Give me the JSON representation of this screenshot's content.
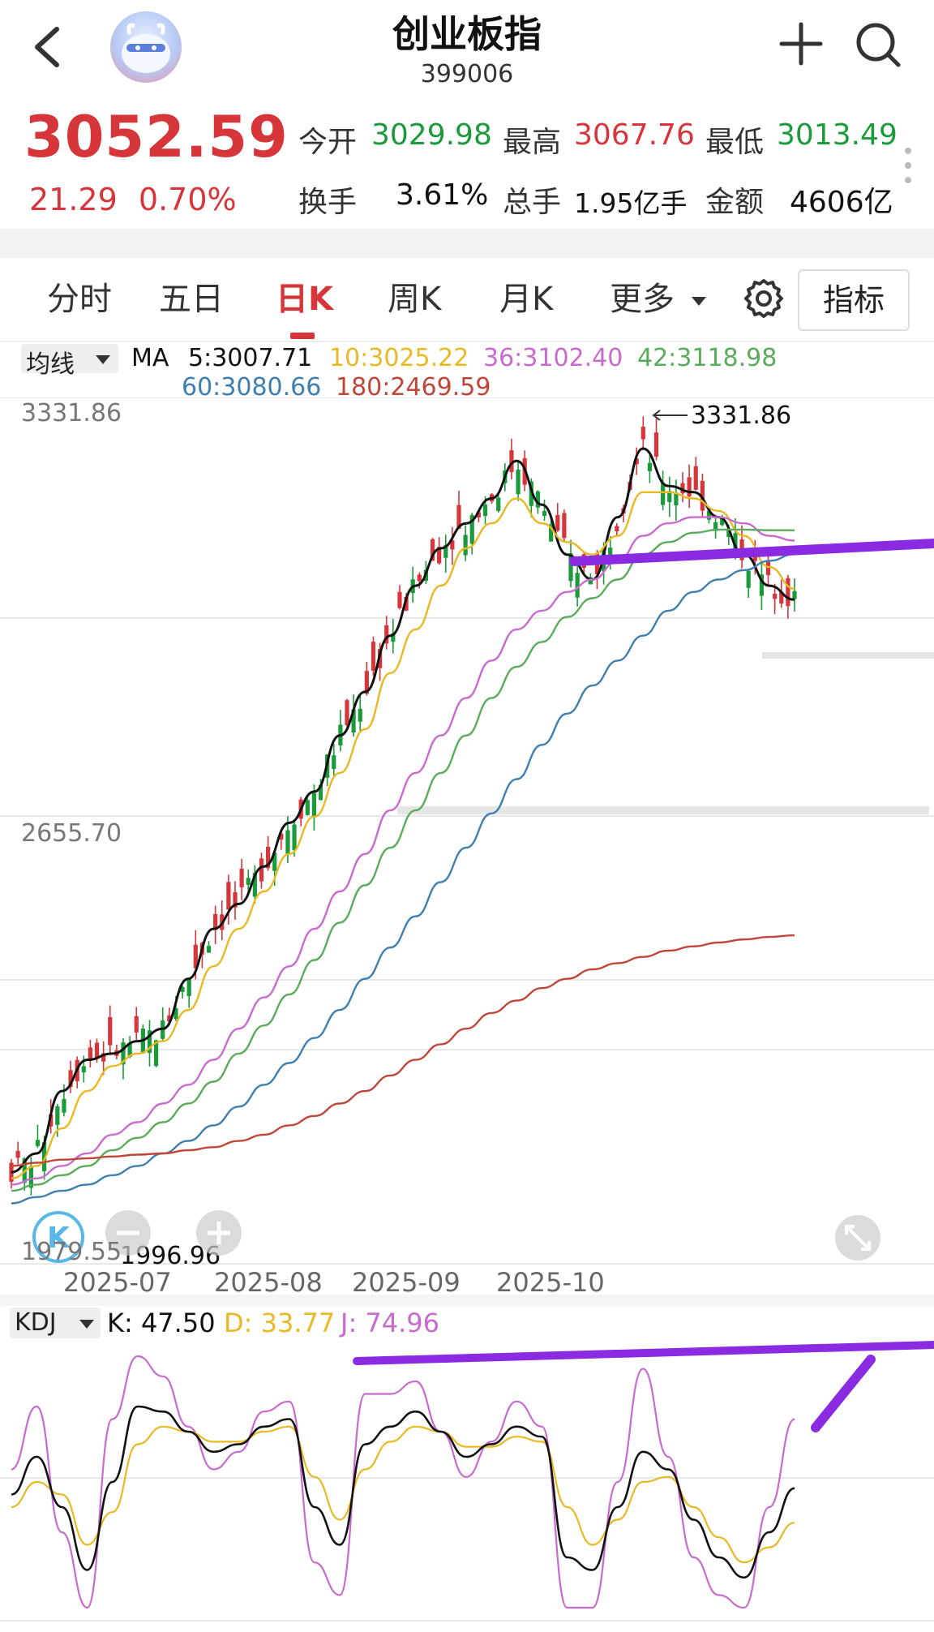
{
  "header": {
    "title": "创业板指",
    "code": "399006"
  },
  "quote": {
    "price": "3052.59",
    "change": "21.29",
    "change_pct": "0.70%",
    "open_label": "今开",
    "open": "3029.98",
    "high_label": "最高",
    "high": "3067.76",
    "low_label": "最低",
    "low": "3013.49",
    "turnover_label": "换手",
    "turnover": "3.61%",
    "volume_label": "总手",
    "volume": "1.95亿手",
    "amount_label": "金额",
    "amount": "4606亿"
  },
  "tabs": [
    {
      "label": "分时"
    },
    {
      "label": "五日"
    },
    {
      "label": "日K"
    },
    {
      "label": "周K"
    },
    {
      "label": "月K"
    },
    {
      "label": "更多"
    }
  ],
  "active_tab": "日K",
  "indicator_button": "指标",
  "ma_legend": {
    "selector": "均线",
    "prefix": "MA",
    "ma5": "5:3007.71",
    "ma10": "10:3025.22",
    "ma36": "36:3102.40",
    "ma42": "42:3118.98",
    "ma60": "60:3080.66",
    "ma180": "180:2469.59"
  },
  "colors": {
    "up": "#d6353a",
    "down": "#1a9a3a",
    "ma5": "#111111",
    "ma10": "#e8b923",
    "ma36": "#c86ad0",
    "ma42": "#5aab5a",
    "ma60": "#3f7fb0",
    "ma180": "#c0463a",
    "annotation": "#8a2be2"
  },
  "chart_data": {
    "type": "line",
    "title": "",
    "y_ticks": [
      "3331.86",
      "2655.70",
      "1979.55"
    ],
    "period_high_label": "3331.86",
    "period_low_label": "1996.96",
    "x_labels": [
      "2025-07",
      "2025-08",
      "2025-09",
      "2025-10"
    ],
    "ylim": [
      1979.55,
      3331.86
    ],
    "price_axis": "linear",
    "series": [
      {
        "name": "MA5",
        "values": [
          2090,
          2120,
          2220,
          2270,
          2280,
          2300,
          2320,
          2400,
          2480,
          2520,
          2580,
          2650,
          2700,
          2790,
          2860,
          2950,
          3030,
          3090,
          3130,
          3170,
          3230,
          3160,
          3080,
          3040,
          3140,
          3250,
          3190,
          3180,
          3140,
          3080,
          3030,
          3007.71
        ]
      },
      {
        "name": "MA10",
        "values": [
          2080,
          2100,
          2160,
          2220,
          2260,
          2280,
          2300,
          2350,
          2420,
          2480,
          2540,
          2600,
          2660,
          2730,
          2800,
          2890,
          2960,
          3030,
          3090,
          3130,
          3170,
          3130,
          3100,
          3080,
          3110,
          3180,
          3180,
          3170,
          3150,
          3110,
          3060,
          3025.22
        ]
      },
      {
        "name": "MA36",
        "values": [
          2070,
          2080,
          2100,
          2120,
          2150,
          2170,
          2200,
          2230,
          2270,
          2320,
          2370,
          2420,
          2480,
          2540,
          2600,
          2670,
          2730,
          2790,
          2850,
          2910,
          2960,
          2990,
          3020,
          3040,
          3070,
          3110,
          3130,
          3140,
          3140,
          3130,
          3110,
          3102.4
        ]
      },
      {
        "name": "MA42",
        "values": [
          2060,
          2070,
          2085,
          2100,
          2125,
          2145,
          2170,
          2200,
          2235,
          2280,
          2325,
          2375,
          2430,
          2490,
          2550,
          2610,
          2670,
          2730,
          2790,
          2850,
          2900,
          2940,
          2980,
          3010,
          3040,
          3080,
          3100,
          3115,
          3120,
          3120,
          3119,
          3118.98
        ]
      },
      {
        "name": "MA60",
        "values": [
          2040,
          2050,
          2060,
          2070,
          2085,
          2100,
          2120,
          2140,
          2165,
          2195,
          2230,
          2265,
          2305,
          2350,
          2400,
          2450,
          2500,
          2555,
          2610,
          2665,
          2720,
          2775,
          2825,
          2870,
          2910,
          2950,
          2990,
          3020,
          3040,
          3055,
          3070,
          3080.66
        ]
      },
      {
        "name": "MA180",
        "values": [
          2100,
          2105,
          2110,
          2112,
          2115,
          2118,
          2120,
          2125,
          2130,
          2140,
          2150,
          2165,
          2180,
          2200,
          2220,
          2245,
          2270,
          2295,
          2320,
          2345,
          2365,
          2385,
          2400,
          2415,
          2425,
          2435,
          2445,
          2452,
          2458,
          2463,
          2467,
          2469.59
        ]
      }
    ]
  },
  "kdj": {
    "selector": "KDJ",
    "k": "K: 47.50",
    "d": "D: 33.77",
    "j": "J: 74.96",
    "ylim": [
      0,
      100
    ],
    "series": [
      {
        "name": "K",
        "values": [
          45,
          60,
          40,
          15,
          50,
          80,
          78,
          70,
          62,
          65,
          72,
          75,
          40,
          25,
          65,
          72,
          78,
          70,
          60,
          65,
          72,
          68,
          20,
          15,
          40,
          62,
          55,
          35,
          20,
          12,
          30,
          47.5
        ]
      },
      {
        "name": "D",
        "values": [
          40,
          50,
          45,
          25,
          38,
          65,
          72,
          70,
          66,
          66,
          70,
          72,
          52,
          35,
          55,
          66,
          72,
          70,
          64,
          64,
          68,
          66,
          40,
          25,
          35,
          50,
          52,
          40,
          28,
          18,
          24,
          33.77
        ]
      },
      {
        "name": "J",
        "values": [
          55,
          80,
          30,
          0,
          75,
          100,
          92,
          72,
          55,
          62,
          78,
          82,
          18,
          5,
          85,
          85,
          90,
          70,
          52,
          66,
          82,
          72,
          0,
          0,
          50,
          95,
          60,
          20,
          5,
          0,
          40,
          74.96
        ]
      }
    ]
  }
}
